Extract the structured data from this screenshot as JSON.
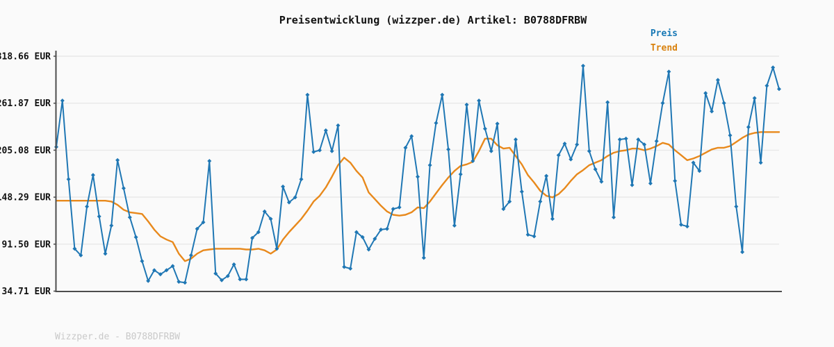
{
  "header": {
    "title": "Preisentwicklung (wizzper.de) Artikel: B0788DFRBW"
  },
  "footer": {
    "watermark": "Wizzper.de - B0788DFRBW"
  },
  "colors": {
    "price_line": "#1f77b4",
    "trend_line": "#e8891c",
    "price_label": "#1778b5",
    "trend_label": "#d9820f",
    "grid": "#e8e8e8",
    "axis": "#4d4d4d",
    "background": "#fafafa"
  },
  "chart_data": {
    "type": "line",
    "title": "Preisentwicklung (wizzper.de) Artikel: B0788DFRBW",
    "xlabel": "",
    "ylabel": "EUR",
    "x_axis_labels": "none shown",
    "grid": "horizontal only",
    "legend_position": "top-right",
    "ylim": [
      34.71,
      318.66
    ],
    "y_ticks": [
      {
        "value": 318.66,
        "label": "318.66 EUR"
      },
      {
        "value": 261.87,
        "label": "261.87 EUR"
      },
      {
        "value": 205.08,
        "label": "205.08 EUR"
      },
      {
        "value": 148.29,
        "label": "148.29 EUR"
      },
      {
        "value": 91.5,
        "label": "91.50 EUR"
      },
      {
        "value": 34.71,
        "label": "34.71 EUR"
      }
    ],
    "series": [
      {
        "name": "Preis",
        "marker": "diamond",
        "values": [
          209,
          265,
          170,
          86,
          78,
          137,
          175,
          125,
          80,
          114,
          193,
          159,
          124,
          100,
          71,
          47,
          60,
          55,
          60,
          65,
          46,
          45,
          78,
          110,
          118,
          192,
          56,
          48,
          53,
          67,
          49,
          49,
          99,
          106,
          131,
          122,
          86,
          161,
          142,
          148,
          170,
          272,
          203,
          205,
          229,
          204,
          235,
          64,
          62,
          106,
          100,
          85,
          98,
          109,
          110,
          134,
          136,
          208,
          222,
          173,
          75,
          187,
          238,
          272,
          206,
          114,
          176,
          260,
          192,
          265,
          231,
          204,
          237,
          134,
          143,
          218,
          155,
          103,
          101,
          143,
          174,
          122,
          199,
          213,
          194,
          212,
          307,
          204,
          182,
          167,
          263,
          124,
          218,
          219,
          163,
          218,
          212,
          165,
          216,
          262,
          300,
          168,
          115,
          113,
          190,
          180,
          274,
          252,
          290,
          262,
          223,
          137,
          82,
          233,
          268,
          190,
          283,
          305,
          279
        ]
      },
      {
        "name": "Trend",
        "marker": "none",
        "values": [
          144,
          144,
          144,
          144,
          144,
          144,
          144,
          144,
          144,
          143,
          139,
          133,
          130,
          129,
          128,
          119,
          109,
          101,
          97,
          94,
          80,
          71,
          74,
          80,
          84,
          85,
          86,
          86,
          86,
          86,
          86,
          85,
          85,
          86,
          84,
          80,
          85,
          97,
          106,
          114,
          122,
          132,
          143,
          150,
          160,
          173,
          187,
          196,
          190,
          180,
          172,
          154,
          146,
          138,
          131,
          127,
          126,
          127,
          130,
          136,
          135,
          143,
          153,
          163,
          172,
          180,
          186,
          188,
          191,
          204,
          219,
          219,
          211,
          207,
          208,
          198,
          188,
          175,
          166,
          156,
          150,
          148,
          152,
          159,
          168,
          176,
          181,
          187,
          190,
          193,
          198,
          202,
          204,
          205,
          207,
          207,
          205,
          207,
          210,
          214,
          212,
          205,
          199,
          193,
          195,
          198,
          202,
          206,
          208,
          208,
          210,
          215,
          220,
          224,
          226,
          227,
          227,
          227,
          227
        ]
      }
    ]
  }
}
